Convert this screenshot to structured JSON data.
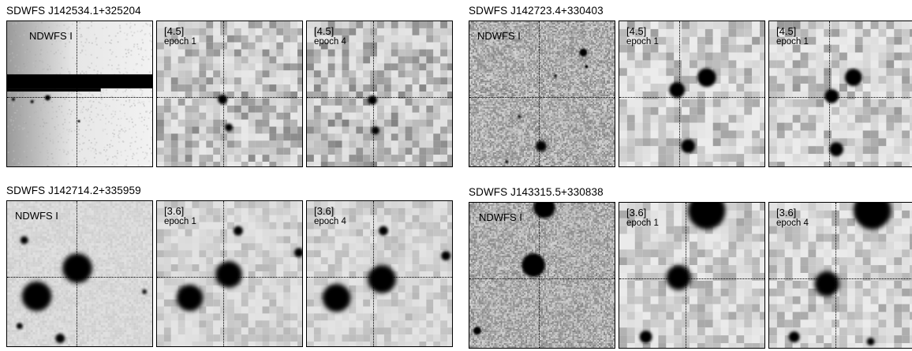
{
  "figure": {
    "groups": [
      {
        "title": "SDWFS J142534.1+325204",
        "panels": [
          {
            "kind": "optical",
            "label": "NDWFS I",
            "sub": ""
          },
          {
            "kind": "ir",
            "label": "[4.5]",
            "sub": "epoch 1"
          },
          {
            "kind": "ir",
            "label": "[4.5]",
            "sub": "epoch 4"
          }
        ]
      },
      {
        "title": "SDWFS J142723.4+330403",
        "panels": [
          {
            "kind": "optical",
            "label": "NDWFS I",
            "sub": ""
          },
          {
            "kind": "ir",
            "label": "[4.5]",
            "sub": "epoch 1"
          },
          {
            "kind": "ir",
            "label": "[4.5]",
            "sub": "epoch 1"
          }
        ]
      },
      {
        "title": "SDWFS J142714.2+335959",
        "panels": [
          {
            "kind": "optical",
            "label": "NDWFS I",
            "sub": ""
          },
          {
            "kind": "ir",
            "label": "[3.6]",
            "sub": "epoch 1"
          },
          {
            "kind": "ir",
            "label": "[3.6]",
            "sub": "epoch 4"
          }
        ]
      },
      {
        "title": "SDWFS J143315.5+330838",
        "panels": [
          {
            "kind": "optical",
            "label": "NDWFS I",
            "sub": ""
          },
          {
            "kind": "ir",
            "label": "[3.6]",
            "sub": "epoch 1"
          },
          {
            "kind": "ir",
            "label": "[3.6]",
            "sub": "epoch 4"
          }
        ]
      }
    ]
  }
}
